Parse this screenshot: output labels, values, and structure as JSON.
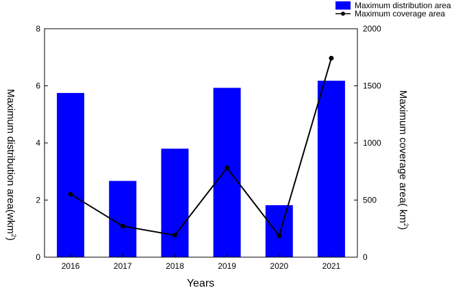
{
  "chart_data": {
    "type": "bar",
    "categories": [
      "2016",
      "2017",
      "2018",
      "2019",
      "2020",
      "2021"
    ],
    "xlabel": "Years",
    "y_left": {
      "label_main": "Maximum distribution area(wkm",
      "label_sup": "2",
      "label_end": ")",
      "lim": [
        0,
        8
      ],
      "ticks": [
        "0",
        "2",
        "4",
        "6",
        "8"
      ]
    },
    "y_right": {
      "label_main": "Maximum coverage area( km",
      "label_sup": "2",
      "label_end": ")",
      "lim": [
        0,
        2000
      ],
      "ticks": [
        "0",
        "500",
        "1000",
        "1500",
        "2000"
      ]
    },
    "series": [
      {
        "name": "Maximum distribution area",
        "type": "bar",
        "axis": "left",
        "color": "#0000ff",
        "values": [
          5.75,
          2.67,
          3.8,
          5.93,
          1.82,
          6.18
        ]
      },
      {
        "name": "Maximum coverage area",
        "type": "line",
        "axis": "right",
        "color": "#000000",
        "values": [
          552,
          272,
          192,
          782,
          188,
          1742
        ]
      }
    ],
    "legend_position": "top-right",
    "grid": false
  }
}
